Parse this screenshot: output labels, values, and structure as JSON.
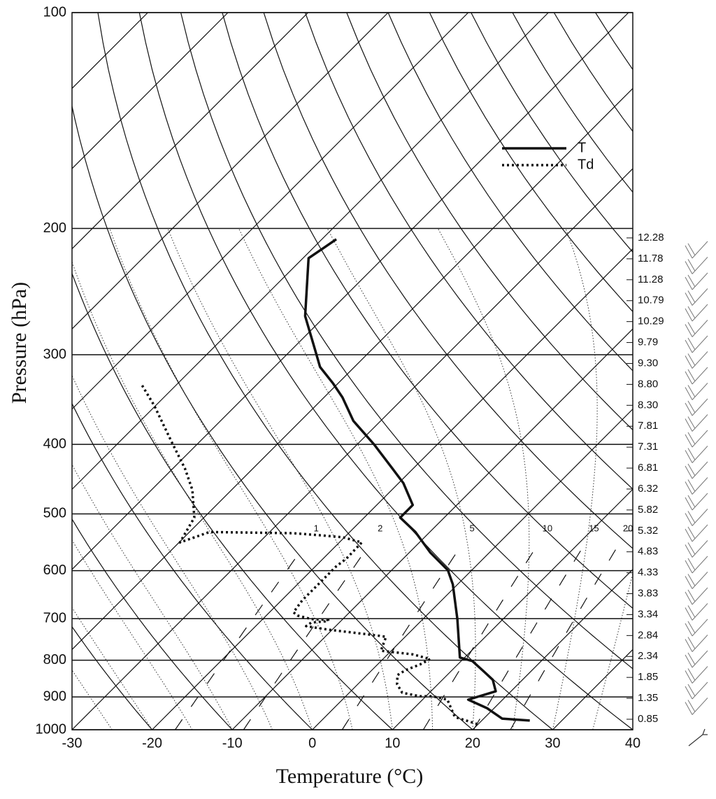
{
  "chart_data": {
    "type": "skewt",
    "xlabel": "Temperature (°C)",
    "ylabel": "Pressure (hPa)",
    "xlim": [
      -30,
      40
    ],
    "xticks": [
      -30,
      -20,
      -10,
      0,
      10,
      20,
      30,
      40
    ],
    "ylim": [
      1000,
      100
    ],
    "yticks": [
      100,
      200,
      300,
      400,
      500,
      600,
      700,
      800,
      900,
      1000
    ],
    "log_y": true,
    "legend": "upper-right",
    "series": [
      {
        "name": "T",
        "color": "#111111",
        "style": "solid",
        "x": [
          26.0,
          22.3,
          19.1,
          15.7,
          18.1,
          16.3,
          14.2,
          11.4,
          9.4,
          4.3,
          -0.6,
          -3.0,
          -7.4,
          -11.8,
          -15.5,
          -15.5,
          -19.4,
          -22.8,
          -27.9,
          -33.4,
          -37.7,
          -40.6,
          -44.3,
          -47.1,
          -52.5,
          -59.3,
          -58.7,
          -58.2
        ],
        "values": [
          971,
          965,
          933,
          908,
          884,
          852,
          830,
          802,
          793,
          701,
          627,
          599,
          566,
          530,
          506,
          486,
          453,
          431,
          400,
          371,
          344,
          329,
          312,
          295,
          265,
          220,
          213,
          207
        ]
      },
      {
        "name": "Td",
        "color": "#111111",
        "style": "dotted",
        "x": [
          19.9,
          16.2,
          13.1,
          10.8,
          9.2,
          6.6,
          4.9,
          3.8,
          4.2,
          5.3,
          5.9,
          3.1,
          -1.3,
          -2.4,
          -3.6,
          -10.6,
          -13.7,
          -13.5,
          -11.9,
          -11.7,
          -13.9,
          -16.1,
          -17.0,
          -17.4,
          -17.4,
          -17.4,
          -17.1,
          -17.2,
          -20.2,
          -22.9,
          -26.9,
          -37.5,
          -39.9,
          -41.2,
          -44.9,
          -48.4,
          -53.6,
          -60.2,
          -64.4
        ],
        "values": [
          982,
          960,
          908,
          898,
          898,
          888,
          864,
          839,
          826,
          811,
          797,
          785,
          776,
          742,
          739,
          725,
          717,
          709,
          706,
          703,
          701,
          693,
          686,
          660,
          620,
          592,
          577,
          548,
          539,
          536,
          532,
          530,
          548,
          506,
          463,
          433,
          396,
          353,
          330
        ]
      }
    ],
    "mixing_ratios": [
      1,
      2,
      5,
      10,
      15,
      20
    ],
    "height_labels": [
      "12.28",
      "11.78",
      "11.28",
      "10.79",
      "10.29",
      "9.79",
      "9.30",
      "8.80",
      "8.30",
      "7.81",
      "7.31",
      "6.81",
      "6.32",
      "5.82",
      "5.32",
      "4.83",
      "4.33",
      "3.83",
      "3.34",
      "2.84",
      "2.34",
      "1.85",
      "1.35",
      "0.85"
    ]
  }
}
